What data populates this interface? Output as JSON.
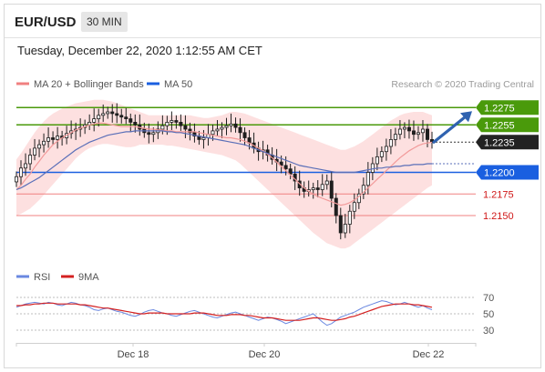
{
  "header": {
    "symbol": "EUR/USD",
    "timeframe": "30 MIN",
    "datetime": "Tuesday, December 22, 2020 1:12:55 AM CET"
  },
  "legend": {
    "ma20_label": "MA 20 + Bollinger Bands",
    "ma50_label": "MA 50",
    "research": "Research © 2020 Trading Central",
    "rsi_label": "RSI",
    "rsi_ma_label": "9MA"
  },
  "colors": {
    "green": "#4a9a0b",
    "blue": "#1a5fe0",
    "red_line": "#f08080",
    "dark_box": "#222222",
    "candle": "#1f1f1f",
    "band_fill": "#fcd6d6",
    "ma20": "#f29a9a",
    "ma50": "#5a6fb8",
    "arrow": "#2f62b0",
    "rsi": "#6a88e0",
    "rsi_ma": "#d42020"
  },
  "chart_data": {
    "type": "line",
    "subtype": "candlestick",
    "title": "EUR/USD",
    "timeframe": "30 MIN",
    "x_ticks": [
      "Dec 18",
      "Dec 20",
      "Dec 22"
    ],
    "ylim": [
      1.209,
      1.229
    ],
    "horizontal_levels": [
      {
        "value": 1.2275,
        "label": "1.2275",
        "style": "green-box"
      },
      {
        "value": 1.2255,
        "label": "1.2255",
        "style": "green-box"
      },
      {
        "value": 1.2235,
        "label": "1.2235",
        "style": "dark-box"
      },
      {
        "value": 1.22,
        "label": "1.2200",
        "style": "blue-box"
      },
      {
        "value": 1.2175,
        "label": "1.2175",
        "style": "red-text"
      },
      {
        "value": 1.215,
        "label": "1.2150",
        "style": "red-text"
      }
    ],
    "price_close": [
      1.2195,
      1.2205,
      1.221,
      1.222,
      1.2228,
      1.2232,
      1.2236,
      1.224,
      1.2238,
      1.2242,
      1.224,
      1.2245,
      1.2248,
      1.225,
      1.2252,
      1.2255,
      1.2258,
      1.2262,
      1.2266,
      1.2268,
      1.227,
      1.2268,
      1.2266,
      1.2264,
      1.2262,
      1.2258,
      1.2255,
      1.225,
      1.2246,
      1.2244,
      1.2246,
      1.225,
      1.2254,
      1.2258,
      1.226,
      1.2258,
      1.2254,
      1.225,
      1.2246,
      1.2242,
      1.2238,
      1.224,
      1.2244,
      1.2248,
      1.225,
      1.2252,
      1.2254,
      1.2256,
      1.2252,
      1.2246,
      1.224,
      1.2234,
      1.2228,
      1.2224,
      1.2226,
      1.222,
      1.2215,
      1.2212,
      1.2208,
      1.2204,
      1.2198,
      1.219,
      1.2182,
      1.2178,
      1.218,
      1.2182,
      1.218,
      1.2186,
      1.219,
      1.217,
      1.215,
      1.213,
      1.214,
      1.2155,
      1.2165,
      1.2175,
      1.2185,
      1.22,
      1.221,
      1.2218,
      1.2224,
      1.223,
      1.2238,
      1.2244,
      1.225,
      1.2252,
      1.2248,
      1.2244,
      1.2246,
      1.225,
      1.2238,
      1.2235
    ],
    "ma20": [
      1.218,
      1.2185,
      1.2192,
      1.2198,
      1.2206,
      1.2213,
      1.222,
      1.2226,
      1.2232,
      1.2236,
      1.224,
      1.2243,
      1.2246,
      1.2249,
      1.2251,
      1.2253,
      1.2255,
      1.2256,
      1.2257,
      1.2257,
      1.2256,
      1.2255,
      1.2254,
      1.2253,
      1.2253,
      1.2253,
      1.2253,
      1.2252,
      1.2251,
      1.225,
      1.225,
      1.2249,
      1.2249,
      1.2248,
      1.2248,
      1.2247,
      1.2247,
      1.2247,
      1.2247,
      1.2247,
      1.2246,
      1.2245,
      1.2244,
      1.2243,
      1.2242,
      1.2241,
      1.224,
      1.224,
      1.2239,
      1.2238,
      1.2236,
      1.2234,
      1.2231,
      1.2228,
      1.2225,
      1.2221,
      1.2217,
      1.2212,
      1.2207,
      1.2202,
      1.2197,
      1.2192,
      1.2187,
      1.2182,
      1.2178,
      1.2175,
      1.2172,
      1.217,
      1.2168,
      1.2166,
      1.2164,
      1.2162,
      1.2163,
      1.2165,
      1.2168,
      1.2172,
      1.2177,
      1.2182,
      1.2187,
      1.2192,
      1.2197,
      1.2202,
      1.2207,
      1.2212,
      1.2217,
      1.2221,
      1.2225,
      1.2228,
      1.2231,
      1.2233,
      1.2234,
      1.2235
    ],
    "ma50": [
      1.218,
      1.2182,
      1.2185,
      1.2188,
      1.2191,
      1.2194,
      1.2198,
      1.2202,
      1.2206,
      1.221,
      1.2214,
      1.2218,
      1.2222,
      1.2226,
      1.2229,
      1.2232,
      1.2235,
      1.2237,
      1.2239,
      1.2241,
      1.2243,
      1.2244,
      1.2245,
      1.2246,
      1.2247,
      1.2247,
      1.2248,
      1.2248,
      1.2248,
      1.2248,
      1.2248,
      1.2248,
      1.2248,
      1.2247,
      1.2247,
      1.2246,
      1.2246,
      1.2245,
      1.2244,
      1.2243,
      1.2242,
      1.2241,
      1.224,
      1.2239,
      1.2238,
      1.2237,
      1.2236,
      1.2235,
      1.2234,
      1.2233,
      1.2232,
      1.223,
      1.2228,
      1.2226,
      1.2224,
      1.2222,
      1.222,
      1.2218,
      1.2216,
      1.2214,
      1.2212,
      1.221,
      1.2208,
      1.2207,
      1.2206,
      1.2205,
      1.2204,
      1.2203,
      1.2202,
      1.2201,
      1.22,
      1.22,
      1.22,
      1.22,
      1.22,
      1.2201,
      1.2202,
      1.2203,
      1.2204,
      1.2205,
      1.2205,
      1.2206,
      1.2206,
      1.2207,
      1.2207,
      1.2208,
      1.2208,
      1.2209,
      1.2209,
      1.2209,
      1.221,
      1.221
    ],
    "bb_upper": [
      1.2215,
      1.2222,
      1.223,
      1.2238,
      1.2246,
      1.2253,
      1.2259,
      1.2264,
      1.2268,
      1.2271,
      1.2274,
      1.2276,
      1.2278,
      1.228,
      1.2281,
      1.2282,
      1.2283,
      1.2284,
      1.2284,
      1.2284,
      1.2283,
      1.2282,
      1.228,
      1.2278,
      1.2276,
      1.2274,
      1.2272,
      1.227,
      1.2268,
      1.2266,
      1.2266,
      1.2266,
      1.2266,
      1.2266,
      1.2266,
      1.2266,
      1.2266,
      1.2266,
      1.2266,
      1.2265,
      1.2264,
      1.2263,
      1.2263,
      1.2264,
      1.2265,
      1.2266,
      1.2268,
      1.227,
      1.227,
      1.2269,
      1.2268,
      1.2266,
      1.2264,
      1.2262,
      1.226,
      1.2258,
      1.2256,
      1.2254,
      1.2252,
      1.225,
      1.2248,
      1.2246,
      1.2244,
      1.2242,
      1.224,
      1.2238,
      1.2236,
      1.2234,
      1.2232,
      1.223,
      1.2228,
      1.2226,
      1.2226,
      1.2228,
      1.223,
      1.2233,
      1.2236,
      1.224,
      1.2244,
      1.2248,
      1.2252,
      1.2256,
      1.226,
      1.2263,
      1.2266,
      1.2268,
      1.2269,
      1.227,
      1.227,
      1.227,
      1.2268,
      1.2266
    ],
    "bb_lower": [
      1.215,
      1.2152,
      1.2155,
      1.2158,
      1.2163,
      1.2168,
      1.2174,
      1.218,
      1.2186,
      1.2192,
      1.2198,
      1.2204,
      1.221,
      1.2216,
      1.2221,
      1.2225,
      1.2228,
      1.223,
      1.2232,
      1.2233,
      1.2233,
      1.2232,
      1.2231,
      1.223,
      1.2229,
      1.2229,
      1.223,
      1.2232,
      1.2232,
      1.2232,
      1.2232,
      1.2232,
      1.2232,
      1.2231,
      1.2231,
      1.223,
      1.2229,
      1.2228,
      1.2227,
      1.2226,
      1.2225,
      1.2224,
      1.2223,
      1.2222,
      1.2221,
      1.222,
      1.2218,
      1.2216,
      1.2214,
      1.221,
      1.2205,
      1.22,
      1.2195,
      1.219,
      1.2185,
      1.218,
      1.2175,
      1.217,
      1.2165,
      1.216,
      1.2155,
      1.215,
      1.2145,
      1.214,
      1.2135,
      1.213,
      1.2126,
      1.2122,
      1.2118,
      1.2116,
      1.2114,
      1.2112,
      1.2112,
      1.2114,
      1.2118,
      1.2122,
      1.2126,
      1.213,
      1.2134,
      1.2138,
      1.2142,
      1.2146,
      1.215,
      1.2154,
      1.2158,
      1.2162,
      1.2166,
      1.217,
      1.2174,
      1.2178,
      1.2182,
      1.2185
    ],
    "arrow": {
      "from_value": 1.2235,
      "to_value": 1.2275
    },
    "rsi_panel": {
      "ylim": [
        20,
        80
      ],
      "levels": [
        70,
        50,
        30
      ],
      "rsi": [
        58,
        60,
        62,
        63,
        64,
        63,
        62,
        64,
        63,
        61,
        60,
        62,
        64,
        63,
        61,
        60,
        58,
        55,
        54,
        56,
        57,
        55,
        53,
        52,
        50,
        48,
        47,
        49,
        52,
        54,
        55,
        53,
        51,
        50,
        48,
        47,
        49,
        51,
        53,
        54,
        52,
        50,
        48,
        46,
        45,
        47,
        49,
        51,
        52,
        50,
        48,
        46,
        44,
        42,
        44,
        46,
        45,
        43,
        41,
        38,
        40,
        42,
        44,
        46,
        48,
        50,
        45,
        40,
        36,
        38,
        42,
        46,
        48,
        50,
        52,
        55,
        58,
        60,
        62,
        64,
        66,
        65,
        63,
        61,
        62,
        64,
        62,
        60,
        58,
        60,
        57,
        55
      ],
      "rsi_ma": [
        60,
        60,
        61,
        61,
        62,
        62,
        63,
        63,
        63,
        62,
        62,
        62,
        62,
        62,
        61,
        61,
        60,
        59,
        58,
        57,
        57,
        56,
        55,
        54,
        53,
        52,
        51,
        50,
        50,
        51,
        51,
        51,
        51,
        50,
        50,
        50,
        50,
        50,
        50,
        51,
        51,
        51,
        50,
        49,
        48,
        48,
        48,
        49,
        49,
        49,
        48,
        48,
        47,
        46,
        45,
        45,
        45,
        44,
        43,
        42,
        42,
        42,
        42,
        43,
        44,
        45,
        45,
        44,
        43,
        42,
        42,
        43,
        44,
        46,
        47,
        49,
        51,
        53,
        55,
        57,
        59,
        60,
        61,
        62,
        62,
        62,
        62,
        61,
        61,
        60,
        59,
        58
      ]
    }
  }
}
